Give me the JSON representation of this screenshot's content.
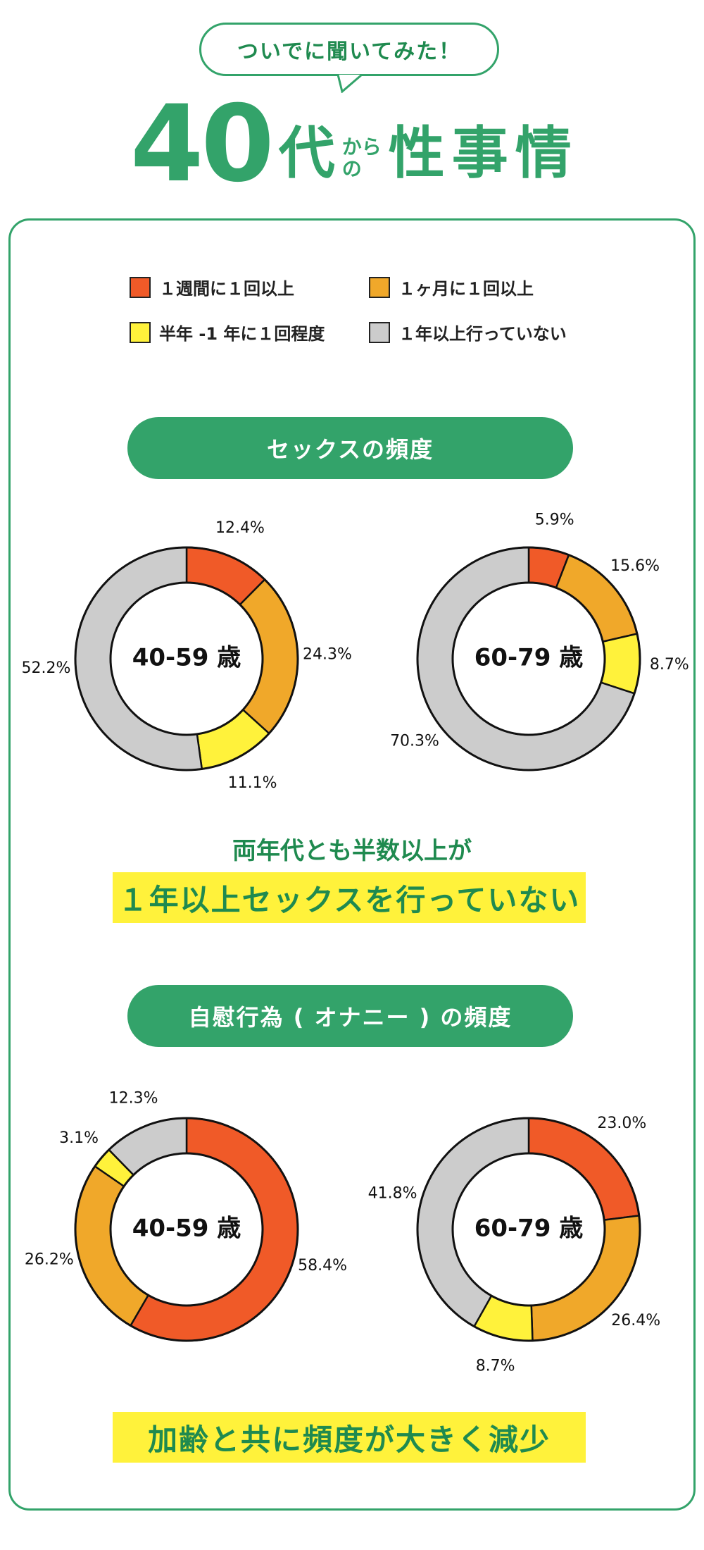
{
  "header": {
    "bubble": "ついでに聞いてみた！",
    "title_num": "40",
    "title_dai": "代",
    "title_kara_1": "から",
    "title_kara_2": "の",
    "title_main": "性事情"
  },
  "legend": [
    {
      "label": "１週間に１回以上",
      "color": "#f05a28"
    },
    {
      "label": "１ヶ月に１回以上",
      "color": "#f0a82a"
    },
    {
      "label": "半年 -1 年に１回程度",
      "color": "#fff23b"
    },
    {
      "label": "１年以上行っていない",
      "color": "#cccccc"
    }
  ],
  "sections": {
    "sex": {
      "title": "セックスの頻度",
      "summary_line": "両年代とも半数以上が",
      "summary_highlight": "１年以上セックスを行っていない"
    },
    "masturbation": {
      "title": "自慰行為 ( オナニー ) の頻度",
      "summary_highlight": "加齢と共に頻度が大きく減少"
    }
  },
  "chart_data": [
    {
      "type": "pie",
      "section": "セックスの頻度",
      "title": "40-59 歳",
      "categories": [
        "１週間に１回以上",
        "１ヶ月に１回以上",
        "半年 -1 年に１回程度",
        "１年以上行っていない"
      ],
      "values": [
        12.4,
        24.3,
        11.1,
        52.2
      ],
      "labels": [
        "12.4%",
        "24.3%",
        "11.1%",
        "52.2%"
      ],
      "colors": [
        "#f05a28",
        "#f0a82a",
        "#fff23b",
        "#cccccc"
      ]
    },
    {
      "type": "pie",
      "section": "セックスの頻度",
      "title": "60-79 歳",
      "categories": [
        "１週間に１回以上",
        "１ヶ月に１回以上",
        "半年 -1 年に１回程度",
        "１年以上行っていない"
      ],
      "values": [
        5.9,
        15.6,
        8.7,
        70.3
      ],
      "labels": [
        "5.9%",
        "15.6%",
        "8.7%",
        "70.3%"
      ],
      "colors": [
        "#f05a28",
        "#f0a82a",
        "#fff23b",
        "#cccccc"
      ]
    },
    {
      "type": "pie",
      "section": "自慰行為 ( オナニー ) の頻度",
      "title": "40-59 歳",
      "categories": [
        "１週間に１回以上",
        "１ヶ月に１回以上",
        "半年 -1 年に１回程度",
        "１年以上行っていない"
      ],
      "values": [
        58.4,
        26.2,
        3.1,
        12.3
      ],
      "labels": [
        "58.4%",
        "26.2%",
        "3.1%",
        "12.3%"
      ],
      "colors": [
        "#f05a28",
        "#f0a82a",
        "#fff23b",
        "#cccccc"
      ]
    },
    {
      "type": "pie",
      "section": "自慰行為 ( オナニー ) の頻度",
      "title": "60-79 歳",
      "categories": [
        "１週間に１回以上",
        "１ヶ月に１回以上",
        "半年 -1 年に１回程度",
        "１年以上行っていない"
      ],
      "values": [
        23.0,
        26.4,
        8.7,
        41.8
      ],
      "labels": [
        "23.0%",
        "26.4%",
        "8.7%",
        "41.8%"
      ],
      "colors": [
        "#f05a28",
        "#f0a82a",
        "#fff23b",
        "#cccccc"
      ]
    }
  ]
}
